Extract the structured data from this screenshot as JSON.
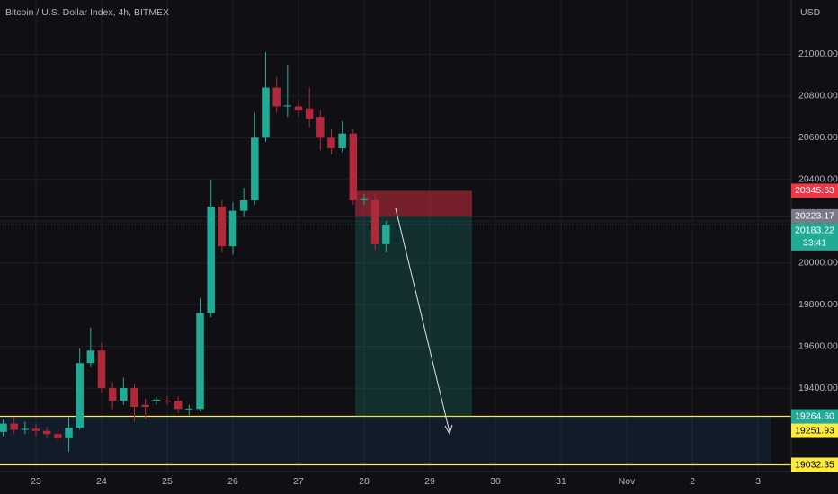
{
  "chart_data": {
    "type": "candlestick",
    "title": "Bitcoin / U.S. Dollar Index, 4h, BITMEX",
    "y_axis_label": "USD",
    "up_color": "#22ab94",
    "down_color": "#b2283b",
    "grid": true,
    "x": [
      -0.5,
      -0.3333,
      -0.1667,
      0,
      0.1667,
      0.3333,
      0.5,
      0.6667,
      0.8333,
      1,
      1.1667,
      1.3333,
      1.5,
      1.6667,
      1.8333,
      2,
      2.1667,
      2.3333,
      2.5,
      2.6667,
      2.8333,
      3,
      3.1667,
      3.3333,
      3.5,
      3.6667,
      3.8333,
      4,
      4.1667,
      4.3333,
      4.5,
      4.6667,
      4.8333,
      5,
      5.1667,
      5.3333
    ],
    "open": [
      19190,
      19230,
      19200,
      19205,
      19195,
      19180,
      19160,
      19210,
      19520,
      19580,
      19400,
      19340,
      19400,
      19320,
      19340,
      19340,
      19340,
      19300,
      19300,
      19760,
      20270,
      20080,
      20250,
      20300,
      20600,
      20840,
      20750,
      20750,
      20740,
      20700,
      20600,
      20550,
      20620,
      20300,
      20300,
      20090
    ],
    "high": [
      19250,
      19260,
      19240,
      19230,
      19215,
      19200,
      19260,
      19590,
      19690,
      19620,
      19430,
      19450,
      19420,
      19350,
      19360,
      19360,
      19360,
      19320,
      19830,
      20400,
      20300,
      20290,
      20360,
      20720,
      21010,
      20890,
      20950,
      20780,
      20840,
      20730,
      20640,
      20680,
      20640,
      20330,
      20330,
      20200
    ],
    "low": [
      19170,
      19180,
      19180,
      19170,
      19160,
      19140,
      19095,
      19200,
      19500,
      19380,
      19300,
      19320,
      19240,
      19250,
      19320,
      19320,
      19280,
      19270,
      19290,
      19740,
      20050,
      20040,
      20220,
      20280,
      20580,
      20720,
      20700,
      20700,
      20650,
      20540,
      20520,
      20530,
      20280,
      20280,
      20060,
      20050
    ],
    "close": [
      19230,
      19200,
      19205,
      19195,
      19180,
      19160,
      19210,
      19520,
      19580,
      19400,
      19340,
      19400,
      19310,
      19310,
      19345,
      19335,
      19300,
      19302,
      19760,
      20270,
      20080,
      20250,
      20300,
      20600,
      20840,
      20750,
      20755,
      20730,
      20690,
      20600,
      20550,
      20620,
      20300,
      20305,
      20090,
      20183
    ],
    "xlim": [
      -0.548,
      11.507
    ],
    "xticks": [
      {
        "value": 0,
        "label": "23"
      },
      {
        "value": 1,
        "label": "24"
      },
      {
        "value": 2,
        "label": "25"
      },
      {
        "value": 3,
        "label": "26"
      },
      {
        "value": 4,
        "label": "27"
      },
      {
        "value": 5,
        "label": "28"
      },
      {
        "value": 6,
        "label": "29"
      },
      {
        "value": 7,
        "label": "30"
      },
      {
        "value": 8,
        "label": "31"
      },
      {
        "value": 9,
        "label": "Nov"
      },
      {
        "value": 10,
        "label": "2"
      },
      {
        "value": 11,
        "label": "3"
      }
    ],
    "ylim": [
      19000,
      21260
    ],
    "yticks": [
      {
        "value": 19400,
        "label": "19400.00"
      },
      {
        "value": 19600,
        "label": "19600.00"
      },
      {
        "value": 19800,
        "label": "19800.00"
      },
      {
        "value": 20000,
        "label": "20000.00"
      },
      {
        "value": 20200,
        "label": "20200.00"
      },
      {
        "value": 20400,
        "label": "20400.00"
      },
      {
        "value": 20600,
        "label": "20600.00"
      },
      {
        "value": 20800,
        "label": "20800.00"
      },
      {
        "value": 21000,
        "label": "21000.00"
      }
    ],
    "position": {
      "stop": 20345.63,
      "entry": 20223.17,
      "target": 19264.6
    },
    "levels": [
      {
        "value": 19264.6,
        "color": "#ffeb3b"
      },
      {
        "value": 19032.35,
        "color": "#ffeb3b"
      }
    ],
    "price_labels": [
      {
        "value": 20345.63,
        "color": "#f23645",
        "text_color": "#ffffff"
      },
      {
        "value": 20223.17,
        "color": "#787b86",
        "text_color": "#ffffff"
      },
      {
        "value": 20183.22,
        "color": "#22ab94",
        "text_color": "#ffffff",
        "countdown": "33:41"
      },
      {
        "value": 19264.6,
        "label": "19264.60",
        "color": "#22ab94",
        "text_color": "#ffffff"
      },
      {
        "value": 19251.93,
        "color": "#ffeb3b",
        "text_color": "#000000"
      },
      {
        "value": 19032.35,
        "color": "#ffeb3b",
        "text_color": "#000000"
      }
    ]
  }
}
